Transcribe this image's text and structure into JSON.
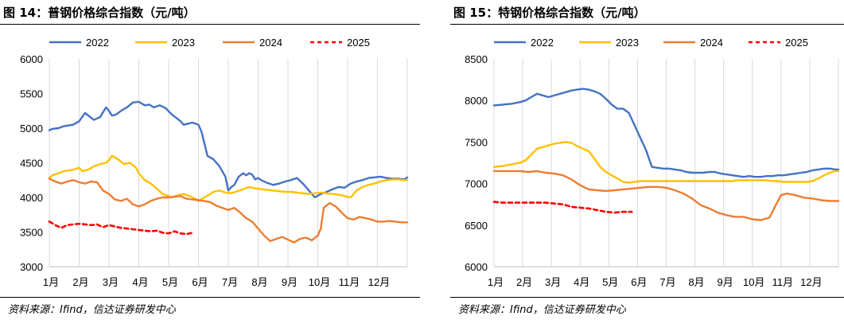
{
  "charts": [
    {
      "title": "图 14：普钢价格综合指数（元/吨）",
      "source": "资料来源：Ifind，信达证券研发中心"
    },
    {
      "title": "图 15：特钢价格综合指数（元/吨）",
      "source": "资料来源：Ifind，信达证券研发中心"
    }
  ],
  "chart_data": [
    {
      "type": "line",
      "title": "图 14：普钢价格综合指数（元/吨）",
      "xlabel": "",
      "ylabel": "",
      "ylim": [
        3000,
        6000
      ],
      "yticks": [
        3000,
        3500,
        4000,
        4500,
        5000,
        5500,
        6000
      ],
      "xticks": [
        "1月",
        "2月",
        "3月",
        "4月",
        "5月",
        "6月",
        "7月",
        "8月",
        "9月",
        "10月",
        "11月",
        "12月"
      ],
      "xlim": [
        0,
        12
      ],
      "grid": "vertical",
      "legend": "top",
      "series": [
        {
          "name": "2022",
          "color": "#4472C4",
          "dashed": false,
          "x": [
            0,
            0.1,
            0.3,
            0.5,
            0.8,
            1.0,
            1.2,
            1.4,
            1.5,
            1.7,
            1.9,
            2.0,
            2.1,
            2.25,
            2.4,
            2.6,
            2.8,
            3.0,
            3.2,
            3.35,
            3.5,
            3.7,
            3.9,
            4.1,
            4.25,
            4.4,
            4.5,
            4.6,
            4.8,
            5.0,
            5.1,
            5.3,
            5.5,
            5.7,
            5.9,
            6.0,
            6.1,
            6.2,
            6.35,
            6.5,
            6.6,
            6.7,
            6.8,
            6.9,
            7.0,
            7.1,
            7.3,
            7.5,
            7.7,
            7.9,
            8.1,
            8.3,
            8.5,
            8.7,
            8.9,
            9.1,
            9.3,
            9.5,
            9.7,
            9.9,
            10.0,
            10.1,
            10.3,
            10.5,
            10.7,
            10.9,
            11.1,
            11.3,
            11.5,
            11.7,
            11.9,
            12.0
          ],
          "y": [
            4970,
            4990,
            5000,
            5030,
            5050,
            5100,
            5220,
            5150,
            5120,
            5160,
            5300,
            5250,
            5180,
            5200,
            5250,
            5300,
            5370,
            5380,
            5330,
            5340,
            5300,
            5330,
            5290,
            5200,
            5150,
            5100,
            5050,
            5060,
            5080,
            5050,
            4950,
            4600,
            4550,
            4450,
            4300,
            4100,
            4150,
            4180,
            4300,
            4350,
            4320,
            4350,
            4330,
            4260,
            4280,
            4250,
            4210,
            4180,
            4200,
            4230,
            4250,
            4280,
            4200,
            4100,
            4000,
            4050,
            4080,
            4120,
            4150,
            4140,
            4170,
            4200,
            4230,
            4250,
            4280,
            4290,
            4300,
            4280,
            4270,
            4270,
            4260,
            4290
          ]
        },
        {
          "name": "2023",
          "color": "#FFC000",
          "dashed": false,
          "x": [
            0,
            0.1,
            0.3,
            0.5,
            0.8,
            1.0,
            1.1,
            1.3,
            1.5,
            1.7,
            1.9,
            2.0,
            2.1,
            2.3,
            2.5,
            2.7,
            2.9,
            3.0,
            3.2,
            3.4,
            3.6,
            3.8,
            4.0,
            4.1,
            4.3,
            4.5,
            4.7,
            4.9,
            5.0,
            5.2,
            5.4,
            5.5,
            5.7,
            5.9,
            6.1,
            6.3,
            6.5,
            6.7,
            6.9,
            7.1,
            7.3,
            7.5,
            7.7,
            7.9,
            8.1,
            8.3,
            8.5,
            8.7,
            8.9,
            9.1,
            9.3,
            9.5,
            9.7,
            9.9,
            10.1,
            10.3,
            10.5,
            10.7,
            10.9,
            11.1,
            11.3,
            11.5,
            11.7,
            11.9,
            12.0
          ],
          "y": [
            4280,
            4320,
            4350,
            4380,
            4400,
            4430,
            4380,
            4400,
            4450,
            4480,
            4500,
            4540,
            4600,
            4550,
            4480,
            4500,
            4430,
            4350,
            4250,
            4200,
            4130,
            4050,
            4020,
            4000,
            4030,
            4050,
            4020,
            3980,
            3950,
            4000,
            4050,
            4080,
            4100,
            4070,
            4060,
            4090,
            4120,
            4150,
            4130,
            4120,
            4110,
            4100,
            4090,
            4080,
            4080,
            4070,
            4060,
            4050,
            4060,
            4070,
            4060,
            4050,
            4040,
            4020,
            4000,
            4100,
            4150,
            4180,
            4200,
            4230,
            4250,
            4260,
            4260,
            4250,
            4250
          ]
        },
        {
          "name": "2024",
          "color": "#ED7D31",
          "dashed": false,
          "x": [
            0,
            0.2,
            0.4,
            0.6,
            0.8,
            1.0,
            1.2,
            1.4,
            1.6,
            1.8,
            2.0,
            2.2,
            2.4,
            2.6,
            2.8,
            3.0,
            3.2,
            3.4,
            3.6,
            3.8,
            4.0,
            4.2,
            4.4,
            4.6,
            4.8,
            5.0,
            5.2,
            5.4,
            5.6,
            5.8,
            6.0,
            6.2,
            6.4,
            6.6,
            6.8,
            7.0,
            7.2,
            7.4,
            7.6,
            7.8,
            8.0,
            8.2,
            8.4,
            8.6,
            8.8,
            9.0,
            9.1,
            9.2,
            9.4,
            9.6,
            9.8,
            10.0,
            10.2,
            10.4,
            10.6,
            10.8,
            11.0,
            11.2,
            11.4,
            11.6,
            11.8,
            12.0
          ],
          "y": [
            4270,
            4230,
            4200,
            4230,
            4250,
            4220,
            4200,
            4230,
            4220,
            4100,
            4050,
            3970,
            3950,
            3980,
            3900,
            3870,
            3900,
            3950,
            3980,
            4000,
            4000,
            4010,
            4020,
            3980,
            3970,
            3960,
            3950,
            3930,
            3880,
            3850,
            3820,
            3850,
            3780,
            3700,
            3650,
            3550,
            3450,
            3370,
            3400,
            3430,
            3390,
            3350,
            3400,
            3420,
            3380,
            3450,
            3550,
            3850,
            3920,
            3870,
            3780,
            3700,
            3680,
            3720,
            3700,
            3680,
            3650,
            3650,
            3660,
            3650,
            3640,
            3640
          ]
        },
        {
          "name": "2025",
          "color": "#FF0000",
          "dashed": true,
          "x": [
            0,
            0.2,
            0.4,
            0.6,
            0.8,
            1.0,
            1.2,
            1.4,
            1.6,
            1.8,
            2.0,
            2.2,
            2.4,
            2.6,
            2.8,
            3.0,
            3.2,
            3.4,
            3.6,
            3.8,
            4.0,
            4.2,
            4.4,
            4.6,
            4.8
          ],
          "y": [
            3650,
            3600,
            3560,
            3600,
            3610,
            3620,
            3610,
            3600,
            3610,
            3570,
            3600,
            3580,
            3560,
            3550,
            3540,
            3530,
            3520,
            3510,
            3520,
            3490,
            3480,
            3510,
            3480,
            3470,
            3490
          ]
        }
      ]
    },
    {
      "type": "line",
      "title": "图 15：特钢价格综合指数（元/吨）",
      "xlabel": "",
      "ylabel": "",
      "ylim": [
        6000,
        8500
      ],
      "yticks": [
        6000,
        6500,
        7000,
        7500,
        8000,
        8500
      ],
      "xticks": [
        "1月",
        "2月",
        "3月",
        "4月",
        "5月",
        "6月",
        "7月",
        "8月",
        "9月",
        "10月",
        "11月",
        "12月"
      ],
      "xlim": [
        0,
        12
      ],
      "grid": "vertical",
      "legend": "top",
      "series": [
        {
          "name": "2022",
          "color": "#4472C4",
          "dashed": false,
          "x": [
            0,
            0.3,
            0.6,
            0.9,
            1.1,
            1.3,
            1.5,
            1.7,
            1.9,
            2.1,
            2.3,
            2.5,
            2.7,
            2.9,
            3.1,
            3.3,
            3.5,
            3.7,
            3.9,
            4.1,
            4.3,
            4.5,
            4.7,
            4.9,
            5.1,
            5.3,
            5.5,
            5.7,
            5.9,
            6.1,
            6.3,
            6.5,
            6.7,
            6.9,
            7.1,
            7.3,
            7.5,
            7.7,
            7.9,
            8.1,
            8.3,
            8.5,
            8.7,
            8.9,
            9.1,
            9.3,
            9.5,
            9.7,
            9.9,
            10.1,
            10.3,
            10.5,
            10.7,
            10.9,
            11.1,
            11.3,
            11.5,
            11.7,
            11.9,
            12.0
          ],
          "y": [
            7940,
            7950,
            7960,
            7980,
            8000,
            8040,
            8080,
            8060,
            8040,
            8060,
            8080,
            8100,
            8120,
            8130,
            8140,
            8130,
            8110,
            8080,
            8020,
            7950,
            7900,
            7900,
            7850,
            7700,
            7550,
            7400,
            7200,
            7190,
            7180,
            7180,
            7170,
            7160,
            7140,
            7130,
            7130,
            7130,
            7140,
            7140,
            7120,
            7110,
            7100,
            7090,
            7080,
            7090,
            7080,
            7080,
            7090,
            7090,
            7100,
            7100,
            7110,
            7120,
            7130,
            7140,
            7160,
            7170,
            7180,
            7180,
            7170,
            7170
          ]
        },
        {
          "name": "2023",
          "color": "#FFC000",
          "dashed": false,
          "x": [
            0,
            0.3,
            0.6,
            0.9,
            1.1,
            1.3,
            1.5,
            1.7,
            1.9,
            2.1,
            2.3,
            2.5,
            2.7,
            2.9,
            3.1,
            3.3,
            3.5,
            3.7,
            3.9,
            4.1,
            4.3,
            4.5,
            4.7,
            4.9,
            5.1,
            5.3,
            5.5,
            5.7,
            5.9,
            6.1,
            6.3,
            6.5,
            6.7,
            6.9,
            7.1,
            7.3,
            7.5,
            7.7,
            7.9,
            8.1,
            8.3,
            8.5,
            8.7,
            8.9,
            9.1,
            9.3,
            9.5,
            9.7,
            9.9,
            10.1,
            10.3,
            10.5,
            10.7,
            10.9,
            11.1,
            11.3,
            11.5,
            11.7,
            11.9,
            12.0
          ],
          "y": [
            7200,
            7210,
            7230,
            7250,
            7280,
            7350,
            7420,
            7440,
            7460,
            7480,
            7490,
            7500,
            7490,
            7450,
            7420,
            7390,
            7300,
            7200,
            7140,
            7100,
            7060,
            7020,
            7010,
            7020,
            7030,
            7030,
            7030,
            7030,
            7030,
            7030,
            7030,
            7030,
            7030,
            7030,
            7030,
            7030,
            7030,
            7030,
            7030,
            7030,
            7030,
            7040,
            7040,
            7040,
            7040,
            7040,
            7040,
            7030,
            7030,
            7020,
            7020,
            7020,
            7020,
            7020,
            7030,
            7060,
            7100,
            7130,
            7150,
            7150
          ]
        },
        {
          "name": "2024",
          "color": "#ED7D31",
          "dashed": false,
          "x": [
            0,
            0.3,
            0.6,
            0.9,
            1.2,
            1.5,
            1.8,
            2.1,
            2.4,
            2.7,
            3.0,
            3.3,
            3.6,
            3.9,
            4.2,
            4.5,
            4.8,
            5.1,
            5.4,
            5.7,
            6.0,
            6.3,
            6.6,
            6.9,
            7.2,
            7.5,
            7.8,
            8.1,
            8.4,
            8.7,
            9.0,
            9.3,
            9.6,
            9.8,
            10.0,
            10.2,
            10.5,
            10.8,
            11.1,
            11.4,
            11.7,
            12.0
          ],
          "y": [
            7150,
            7150,
            7150,
            7150,
            7140,
            7150,
            7130,
            7120,
            7100,
            7050,
            6980,
            6930,
            6920,
            6910,
            6920,
            6930,
            6940,
            6950,
            6960,
            6960,
            6950,
            6920,
            6880,
            6820,
            6740,
            6700,
            6650,
            6620,
            6600,
            6600,
            6570,
            6560,
            6590,
            6730,
            6860,
            6880,
            6860,
            6830,
            6820,
            6800,
            6790,
            6790
          ]
        },
        {
          "name": "2025",
          "color": "#FF0000",
          "dashed": true,
          "x": [
            0,
            0.3,
            0.6,
            0.9,
            1.2,
            1.5,
            1.8,
            2.1,
            2.4,
            2.7,
            3.0,
            3.3,
            3.6,
            3.9,
            4.2,
            4.5,
            4.8
          ],
          "y": [
            6780,
            6770,
            6770,
            6770,
            6770,
            6770,
            6770,
            6760,
            6750,
            6720,
            6710,
            6700,
            6680,
            6660,
            6650,
            6660,
            6660
          ]
        }
      ]
    }
  ]
}
